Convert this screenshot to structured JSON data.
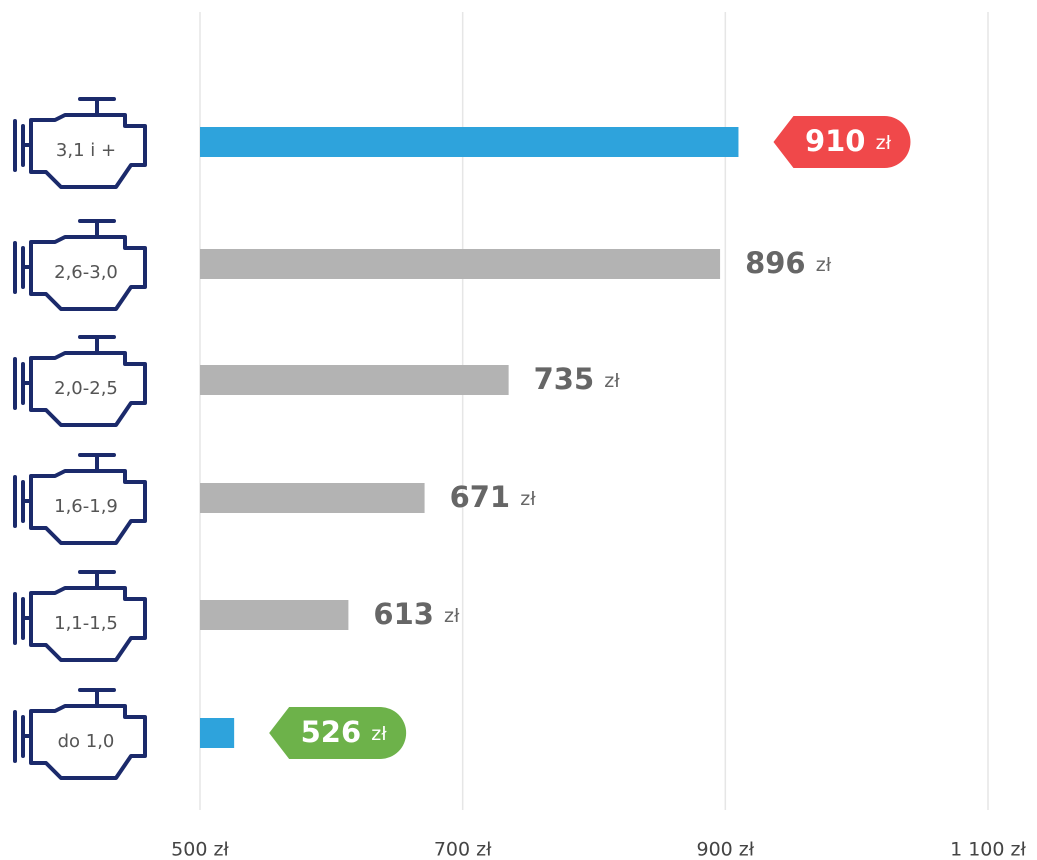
{
  "chart_data": {
    "type": "barh",
    "categories": [
      "3,1 i +",
      "2,6-3,0",
      "2,0-2,5",
      "1,6-1,9",
      "1,1-1,5",
      "do 1,0"
    ],
    "values": [
      910,
      896,
      735,
      671,
      613,
      526
    ],
    "value_labels": [
      "910 zł",
      "896 zł",
      "735 zł",
      "671 zł",
      "613 zł",
      "526 zł"
    ],
    "colors": [
      "#2ea3dc",
      "#b3b3b3",
      "#b3b3b3",
      "#b3b3b3",
      "#b3b3b3",
      "#2ea3dc"
    ],
    "badge_colors": [
      "#f0484a",
      null,
      null,
      null,
      null,
      "#6db24a"
    ],
    "xlim": [
      500,
      1100
    ],
    "xticks": [
      {
        "value": 500,
        "label": "500 zł"
      },
      {
        "value": 700,
        "label": "700 zł"
      },
      {
        "value": 900,
        "label": "900 zł"
      },
      {
        "value": 1100,
        "label": "1 100 zł"
      }
    ],
    "grid": true
  }
}
